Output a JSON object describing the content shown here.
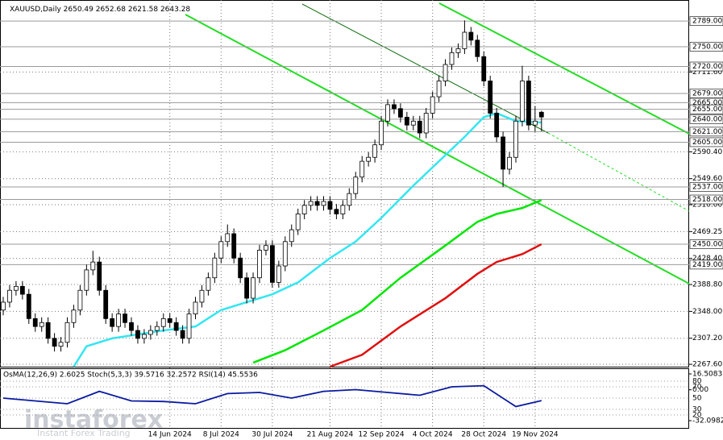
{
  "chart_data": {
    "type": "candlestick",
    "symbol": "XAUUSD,Daily",
    "ohlc_header": [
      2650.49,
      2652.68,
      2621.58,
      2643.28
    ],
    "categories": [
      null,
      null,
      null,
      null,
      null,
      null,
      null,
      null,
      null,
      null,
      null,
      null,
      null,
      null,
      null,
      null,
      null,
      null,
      null,
      null,
      null,
      null,
      null,
      null,
      null,
      null,
      "14 Jun 2024",
      null,
      null,
      null,
      null,
      null,
      null,
      null,
      "8 Jul 2024",
      null,
      null,
      null,
      null,
      null,
      null,
      null,
      "30 Jul 2024",
      null,
      null,
      null,
      null,
      null,
      null,
      null,
      null,
      "21 Aug 2024",
      null,
      null,
      null,
      null,
      null,
      null,
      null,
      "12 Sep 2024",
      null,
      null,
      null,
      null,
      null,
      null,
      null,
      "4 Oct 2024",
      null,
      null,
      null,
      null,
      null,
      null,
      null,
      "28 Oct 2024",
      null,
      null,
      null,
      null,
      null,
      null,
      null,
      "19 Nov 2024",
      null
    ],
    "ohlc": [
      [
        2350,
        2370,
        2342,
        2362
      ],
      [
        2362,
        2388,
        2354,
        2380
      ],
      [
        2380,
        2394,
        2372,
        2386
      ],
      [
        2386,
        2394,
        2366,
        2374
      ],
      [
        2374,
        2382,
        2329,
        2337
      ],
      [
        2337,
        2345,
        2317,
        2325
      ],
      [
        2325,
        2339,
        2317,
        2331
      ],
      [
        2331,
        2339,
        2299,
        2307
      ],
      [
        2307,
        2315,
        2287,
        2295
      ],
      [
        2295,
        2309,
        2287,
        2301
      ],
      [
        2301,
        2339,
        2293,
        2331
      ],
      [
        2331,
        2358,
        2323,
        2350
      ],
      [
        2350,
        2388,
        2342,
        2380
      ],
      [
        2380,
        2419,
        2372,
        2411
      ],
      [
        2411,
        2440,
        2403,
        2423
      ],
      [
        2423,
        2431,
        2372,
        2380
      ],
      [
        2380,
        2388,
        2329,
        2337
      ],
      [
        2337,
        2345,
        2317,
        2325
      ],
      [
        2325,
        2352,
        2317,
        2344
      ],
      [
        2344,
        2352,
        2323,
        2331
      ],
      [
        2331,
        2339,
        2311,
        2319
      ],
      [
        2319,
        2327,
        2299,
        2307
      ],
      [
        2307,
        2321,
        2299,
        2313
      ],
      [
        2313,
        2327,
        2305,
        2319
      ],
      [
        2319,
        2333,
        2311,
        2325
      ],
      [
        2325,
        2345,
        2317,
        2337
      ],
      [
        2337,
        2345,
        2323,
        2331
      ],
      [
        2331,
        2339,
        2311,
        2319
      ],
      [
        2319,
        2327,
        2299,
        2307
      ],
      [
        2307,
        2352,
        2299,
        2344
      ],
      [
        2344,
        2370,
        2336,
        2362
      ],
      [
        2362,
        2388,
        2354,
        2380
      ],
      [
        2380,
        2407,
        2372,
        2399
      ],
      [
        2399,
        2437,
        2391,
        2429
      ],
      [
        2429,
        2462,
        2421,
        2454
      ],
      [
        2454,
        2480,
        2446,
        2466
      ],
      [
        2466,
        2474,
        2421,
        2429
      ],
      [
        2429,
        2437,
        2391,
        2399
      ],
      [
        2399,
        2407,
        2360,
        2368
      ],
      [
        2368,
        2407,
        2360,
        2399
      ],
      [
        2399,
        2449,
        2391,
        2441
      ],
      [
        2441,
        2456,
        2433,
        2448
      ],
      [
        2448,
        2456,
        2384,
        2392
      ],
      [
        2392,
        2425,
        2384,
        2417
      ],
      [
        2417,
        2462,
        2409,
        2454
      ],
      [
        2454,
        2480,
        2446,
        2472
      ],
      [
        2472,
        2504,
        2464,
        2496
      ],
      [
        2496,
        2517,
        2488,
        2509
      ],
      [
        2509,
        2523,
        2501,
        2515
      ],
      [
        2515,
        2523,
        2501,
        2509
      ],
      [
        2509,
        2523,
        2501,
        2515
      ],
      [
        2515,
        2523,
        2495,
        2503
      ],
      [
        2503,
        2511,
        2488,
        2496
      ],
      [
        2496,
        2517,
        2488,
        2509
      ],
      [
        2509,
        2535,
        2501,
        2527
      ],
      [
        2527,
        2560,
        2519,
        2552
      ],
      [
        2552,
        2584,
        2544,
        2576
      ],
      [
        2576,
        2590,
        2568,
        2582
      ],
      [
        2582,
        2609,
        2574,
        2601
      ],
      [
        2601,
        2645,
        2593,
        2637
      ],
      [
        2637,
        2670,
        2629,
        2662
      ],
      [
        2662,
        2670,
        2648,
        2656
      ],
      [
        2656,
        2664,
        2635,
        2643
      ],
      [
        2643,
        2651,
        2623,
        2631
      ],
      [
        2631,
        2645,
        2623,
        2637
      ],
      [
        2637,
        2645,
        2611,
        2619
      ],
      [
        2619,
        2657,
        2611,
        2649
      ],
      [
        2649,
        2682,
        2641,
        2674
      ],
      [
        2674,
        2706,
        2666,
        2698
      ],
      [
        2698,
        2731,
        2690,
        2723
      ],
      [
        2723,
        2749,
        2715,
        2741
      ],
      [
        2741,
        2755,
        2733,
        2747
      ],
      [
        2747,
        2790,
        2739,
        2772
      ],
      [
        2772,
        2780,
        2752,
        2760
      ],
      [
        2760,
        2768,
        2727,
        2735
      ],
      [
        2735,
        2743,
        2690,
        2698
      ],
      [
        2698,
        2706,
        2641,
        2649
      ],
      [
        2649,
        2657,
        2605,
        2613
      ],
      [
        2613,
        2621,
        2537,
        2564
      ],
      [
        2564,
        2590,
        2556,
        2582
      ],
      [
        2582,
        2645,
        2574,
        2637
      ],
      [
        2637,
        2721,
        2629,
        2698
      ],
      [
        2698,
        2706,
        2623,
        2631
      ],
      [
        2631,
        2660,
        2621,
        2637
      ],
      [
        2650.49,
        2652.68,
        2621.58,
        2643.28
      ]
    ],
    "ylim": [
      2264,
      2821
    ],
    "yticks": [
      {
        "value": 2711.6,
        "label": "2711.60"
      },
      {
        "value": 2590.4,
        "label": "2590.40"
      },
      {
        "value": 2549.6,
        "label": "2549.60"
      },
      {
        "value": 2510,
        "label": "2510.00"
      },
      {
        "value": 2469.25,
        "label": "2469.25"
      },
      {
        "value": 2428.4,
        "label": "2428.40"
      },
      {
        "value": 2388.8,
        "label": "2388.80"
      },
      {
        "value": 2348,
        "label": "2348.00"
      },
      {
        "value": 2307.2,
        "label": "2307.20"
      },
      {
        "value": 2267.6,
        "label": "2267.60"
      }
    ],
    "levels": [
      {
        "value": 2789,
        "label": "2789.00"
      },
      {
        "value": 2750,
        "label": "2750.00"
      },
      {
        "value": 2720,
        "label": "2720.00"
      },
      {
        "value": 2679,
        "label": "2679.00"
      },
      {
        "value": 2665,
        "label": "2665.00"
      },
      {
        "value": 2655,
        "label": "2655.00"
      },
      {
        "value": 2640,
        "label": "2640.00"
      },
      {
        "value": 2621,
        "label": "2621.00"
      },
      {
        "value": 2605,
        "label": "2605.00"
      },
      {
        "value": 2537,
        "label": "2537.00"
      },
      {
        "value": 2518,
        "label": "2518.00"
      },
      {
        "value": 2450,
        "label": "2450.00"
      },
      {
        "value": 2419,
        "label": "2419.00"
      }
    ],
    "moving_averages": [
      {
        "color": "#33e6f0",
        "x": [
          11,
          13,
          17,
          25,
          30,
          34,
          38,
          42,
          46,
          51,
          55,
          59,
          64,
          68,
          72,
          75,
          77,
          80,
          84
        ],
        "values": [
          2264,
          2295,
          2307,
          2319,
          2325,
          2350,
          2362,
          2374,
          2392,
          2429,
          2454,
          2490,
          2539,
          2576,
          2613,
          2643,
          2649,
          2637,
          2635
        ]
      },
      {
        "color": "#00e600",
        "x": [
          39,
          44,
          50,
          56,
          62,
          69,
          74,
          77,
          81,
          84
        ],
        "values": [
          2270,
          2289,
          2319,
          2350,
          2399,
          2448,
          2484,
          2496,
          2505,
          2517
        ]
      },
      {
        "color": "#e01010",
        "x": [
          51,
          56,
          62,
          69,
          74,
          77,
          81,
          84
        ],
        "values": [
          2264,
          2282,
          2325,
          2368,
          2405,
          2423,
          2435,
          2450
        ]
      }
    ],
    "indicator": {
      "label": "OsMA(12,26,9) 2.6025 Stoch(5,3,3) 39.5716 32.2572 RSI(14) 45.5536",
      "rsi_ylim": [
        0,
        100
      ],
      "rsi_ticks": [
        80,
        70,
        50,
        30,
        20
      ],
      "osma_ylim": [
        -32.0982,
        16.5083
      ],
      "osma_ticks": [
        {
          "value": 16.5083,
          "label": "16.5083"
        },
        {
          "value": 0,
          "label": "0.00"
        },
        {
          "value": -32.0982,
          "label": "-32.0982"
        }
      ],
      "rsi_color": "#0a1aa0",
      "rsi_x": [
        0,
        5,
        10,
        15,
        20,
        25,
        30,
        35,
        40,
        45,
        50,
        55,
        60,
        65,
        70,
        75,
        80,
        84
      ],
      "rsi_values": [
        50,
        45,
        40,
        62,
        45,
        44,
        40,
        58,
        60,
        50,
        62,
        65,
        60,
        55,
        70,
        72,
        35,
        45.5536
      ]
    },
    "watermark": {
      "brand": "instaforex",
      "tagline": "Instant Forex Trading"
    }
  }
}
